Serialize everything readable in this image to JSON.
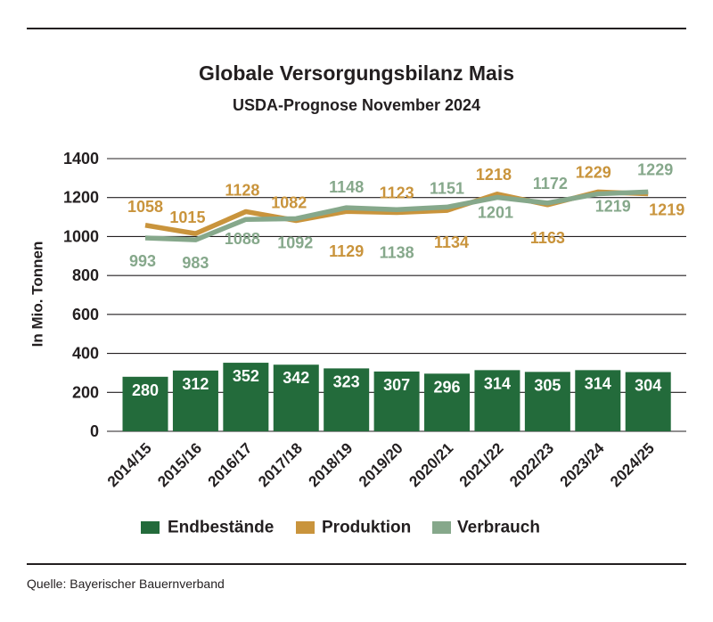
{
  "chart_data": {
    "type": "bar",
    "title": "Globale Versorgungsbilanz Mais",
    "subtitle": "USDA-Prognose November 2024",
    "ylabel": "In Mio. Tonnen",
    "ylim": [
      0,
      1400
    ],
    "yticks": [
      0,
      200,
      400,
      600,
      800,
      1000,
      1200,
      1400
    ],
    "grid": true,
    "legend": "bottom",
    "categories": [
      "2014/15",
      "2015/16",
      "2016/17",
      "2017/18",
      "2018/19",
      "2019/20",
      "2020/21",
      "2021/22",
      "2022/23",
      "2023/24",
      "2024/25"
    ],
    "series": [
      {
        "name": "Endbestände",
        "type": "bar",
        "color": "#236b3b",
        "values": [
          280,
          312,
          352,
          342,
          323,
          307,
          296,
          314,
          305,
          314,
          304
        ]
      },
      {
        "name": "Produktion",
        "type": "line",
        "color": "#c9943c",
        "values": [
          1058,
          1015,
          1128,
          1082,
          1129,
          1123,
          1134,
          1218,
          1163,
          1229,
          1219
        ]
      },
      {
        "name": "Verbrauch",
        "type": "line",
        "color": "#86a88b",
        "values": [
          993,
          983,
          1088,
          1092,
          1148,
          1138,
          1151,
          1201,
          1172,
          1219,
          1229
        ]
      }
    ]
  },
  "footer": {
    "source": "Quelle: Bayerischer Bauernverband"
  }
}
